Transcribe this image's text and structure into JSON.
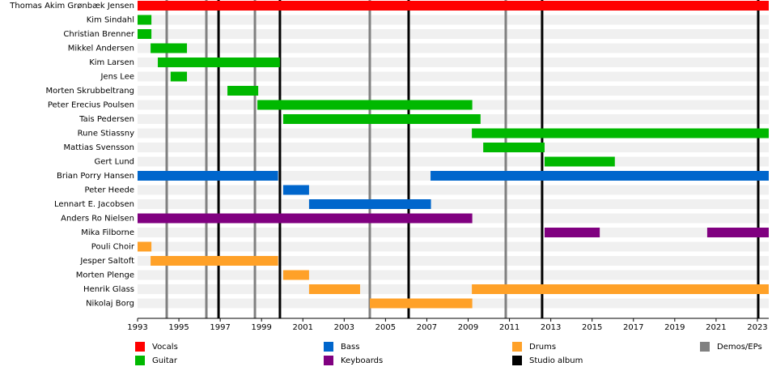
{
  "chart_data": {
    "type": "timeline",
    "roles": [
      {
        "name": "Vocals",
        "color": "#ff0000"
      },
      {
        "name": "Guitar",
        "color": "#00b800"
      },
      {
        "name": "Bass",
        "color": "#0066cc"
      },
      {
        "name": "Keyboards",
        "color": "#800080"
      },
      {
        "name": "Drums",
        "color": "#ffa128"
      }
    ],
    "events": [
      {
        "name": "Studio album",
        "color": "#000000",
        "x": [
          1996.92,
          1999.89,
          2006.12,
          2012.58,
          2023.04
        ]
      },
      {
        "name": "Demos/EPs",
        "color": "#808080",
        "x": [
          1994.41,
          1996.33,
          1998.68,
          2004.24,
          2010.82
        ]
      }
    ],
    "members": [
      {
        "name": "Thomas Akim Grønbæk Jensen",
        "periods": [
          {
            "role": "Vocals",
            "start": 1993,
            "end": 2023.55
          }
        ]
      },
      {
        "name": "Kim Sindahl",
        "periods": [
          {
            "role": "Guitar",
            "start": 1993,
            "end": 1993.67
          }
        ]
      },
      {
        "name": "Christian Brenner",
        "periods": [
          {
            "role": "Guitar",
            "start": 1993,
            "end": 1993.67
          }
        ]
      },
      {
        "name": "Mikkel Andersen",
        "periods": [
          {
            "role": "Guitar",
            "start": 1993.63,
            "end": 1995.39
          }
        ]
      },
      {
        "name": "Kim Larsen",
        "periods": [
          {
            "role": "Guitar",
            "start": 1993.98,
            "end": 1999.89
          }
        ]
      },
      {
        "name": "Jens Lee",
        "periods": [
          {
            "role": "Guitar",
            "start": 1994.6,
            "end": 1995.39
          }
        ]
      },
      {
        "name": "Morten Skrubbeltrang",
        "periods": [
          {
            "role": "Guitar",
            "start": 1997.35,
            "end": 1998.84
          }
        ]
      },
      {
        "name": "Peter Erecius Poulsen",
        "periods": [
          {
            "role": "Guitar",
            "start": 1998.8,
            "end": 2009.2
          }
        ]
      },
      {
        "name": "Tais Pedersen",
        "periods": [
          {
            "role": "Guitar",
            "start": 2000.05,
            "end": 2009.6
          }
        ]
      },
      {
        "name": "Rune Stiassny",
        "periods": [
          {
            "role": "Guitar",
            "start": 2009.18,
            "end": 2023.55
          }
        ]
      },
      {
        "name": "Mattias Svensson",
        "periods": [
          {
            "role": "Guitar",
            "start": 2009.73,
            "end": 2012.7
          }
        ]
      },
      {
        "name": "Gert Lund",
        "periods": [
          {
            "role": "Guitar",
            "start": 2012.7,
            "end": 2016.1
          }
        ]
      },
      {
        "name": "Brian Porry Hansen",
        "periods": [
          {
            "role": "Bass",
            "start": 1993,
            "end": 1999.8
          },
          {
            "role": "Bass",
            "start": 2007.18,
            "end": 2023.55
          }
        ]
      },
      {
        "name": "Peter Heede",
        "periods": [
          {
            "role": "Bass",
            "start": 2000.05,
            "end": 2001.3
          }
        ]
      },
      {
        "name": "Lennart E. Jacobsen",
        "periods": [
          {
            "role": "Bass",
            "start": 2001.3,
            "end": 2007.2
          }
        ]
      },
      {
        "name": "Anders Ro Nielsen",
        "periods": [
          {
            "role": "Keyboards",
            "start": 1993,
            "end": 2009.2
          }
        ]
      },
      {
        "name": "Mika Filborne",
        "periods": [
          {
            "role": "Keyboards",
            "start": 2012.7,
            "end": 2015.37
          },
          {
            "role": "Keyboards",
            "start": 2020.57,
            "end": 2023.55
          }
        ]
      },
      {
        "name": "Pouli Choir",
        "periods": [
          {
            "role": "Drums",
            "start": 1993,
            "end": 1993.67
          }
        ]
      },
      {
        "name": "Jesper Saltoft",
        "periods": [
          {
            "role": "Drums",
            "start": 1993.63,
            "end": 1999.8
          }
        ]
      },
      {
        "name": "Morten Plenge",
        "periods": [
          {
            "role": "Drums",
            "start": 2000.05,
            "end": 2001.3
          }
        ]
      },
      {
        "name": "Henrik Glass",
        "periods": [
          {
            "role": "Drums",
            "start": 2001.3,
            "end": 2003.77
          },
          {
            "role": "Drums",
            "start": 2009.18,
            "end": 2023.55
          }
        ]
      },
      {
        "name": "Nikolaj Borg",
        "periods": [
          {
            "role": "Drums",
            "start": 2004.24,
            "end": 2009.2
          }
        ]
      }
    ],
    "xlim": [
      1993,
      2023.55
    ],
    "xticks": [
      1993,
      1995,
      1997,
      1999,
      2001,
      2003,
      2005,
      2007,
      2009,
      2011,
      2013,
      2015,
      2017,
      2019,
      2021,
      2023
    ]
  }
}
